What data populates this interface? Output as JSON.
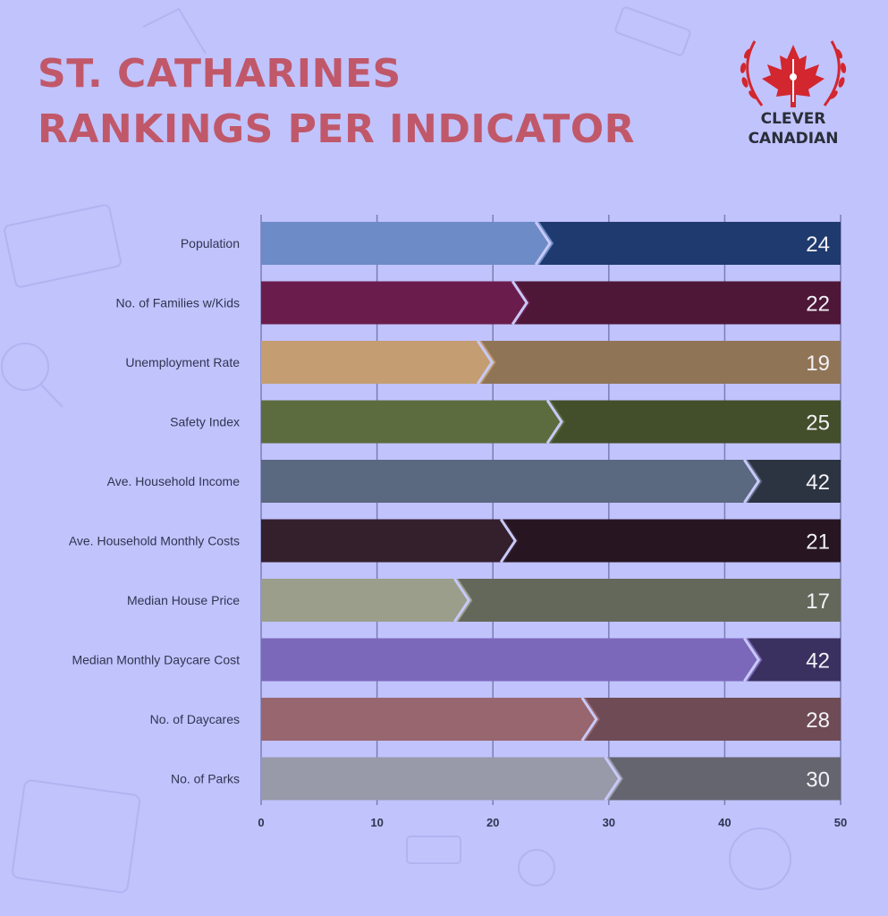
{
  "title_line1": "ST. CATHARINES",
  "title_line2": "RANKINGS PER INDICATOR",
  "logo": {
    "line1": "CLEVER",
    "line2": "CANADIAN",
    "icon": "maple-leaf-laurel-icon"
  },
  "colors": {
    "background": "#c1c3fd",
    "title": "#c0586a",
    "label": "#2f3550",
    "grid": "#7b7fb3",
    "logo_red": "#d2272e"
  },
  "chart_data": {
    "type": "bar",
    "orientation": "horizontal",
    "categories": [
      "Population",
      "No. of Families w/Kids",
      "Unemployment Rate",
      "Safety Index",
      "Ave. Household Income",
      "Ave. Household Monthly Costs",
      "Median House Price",
      "Median Monthly Daycare Cost",
      "No. of Daycares",
      "No. of Parks"
    ],
    "values": [
      24,
      22,
      19,
      25,
      42,
      21,
      17,
      42,
      28,
      30
    ],
    "xlim": [
      0,
      50
    ],
    "xticks": [
      0,
      10,
      20,
      30,
      40,
      50
    ],
    "grid": true,
    "light_colors": [
      "#6c8bc7",
      "#6a1d4c",
      "#c49e72",
      "#5d6c3e",
      "#5a6880",
      "#341f2d",
      "#9a9e8b",
      "#7c68bb",
      "#98666f",
      "#989aaa"
    ],
    "dark_colors": [
      "#1f3a6e",
      "#4e1737",
      "#907456",
      "#434f2b",
      "#2c3341",
      "#271621",
      "#64685a",
      "#3a3160",
      "#6e4b55",
      "#64656f"
    ]
  }
}
